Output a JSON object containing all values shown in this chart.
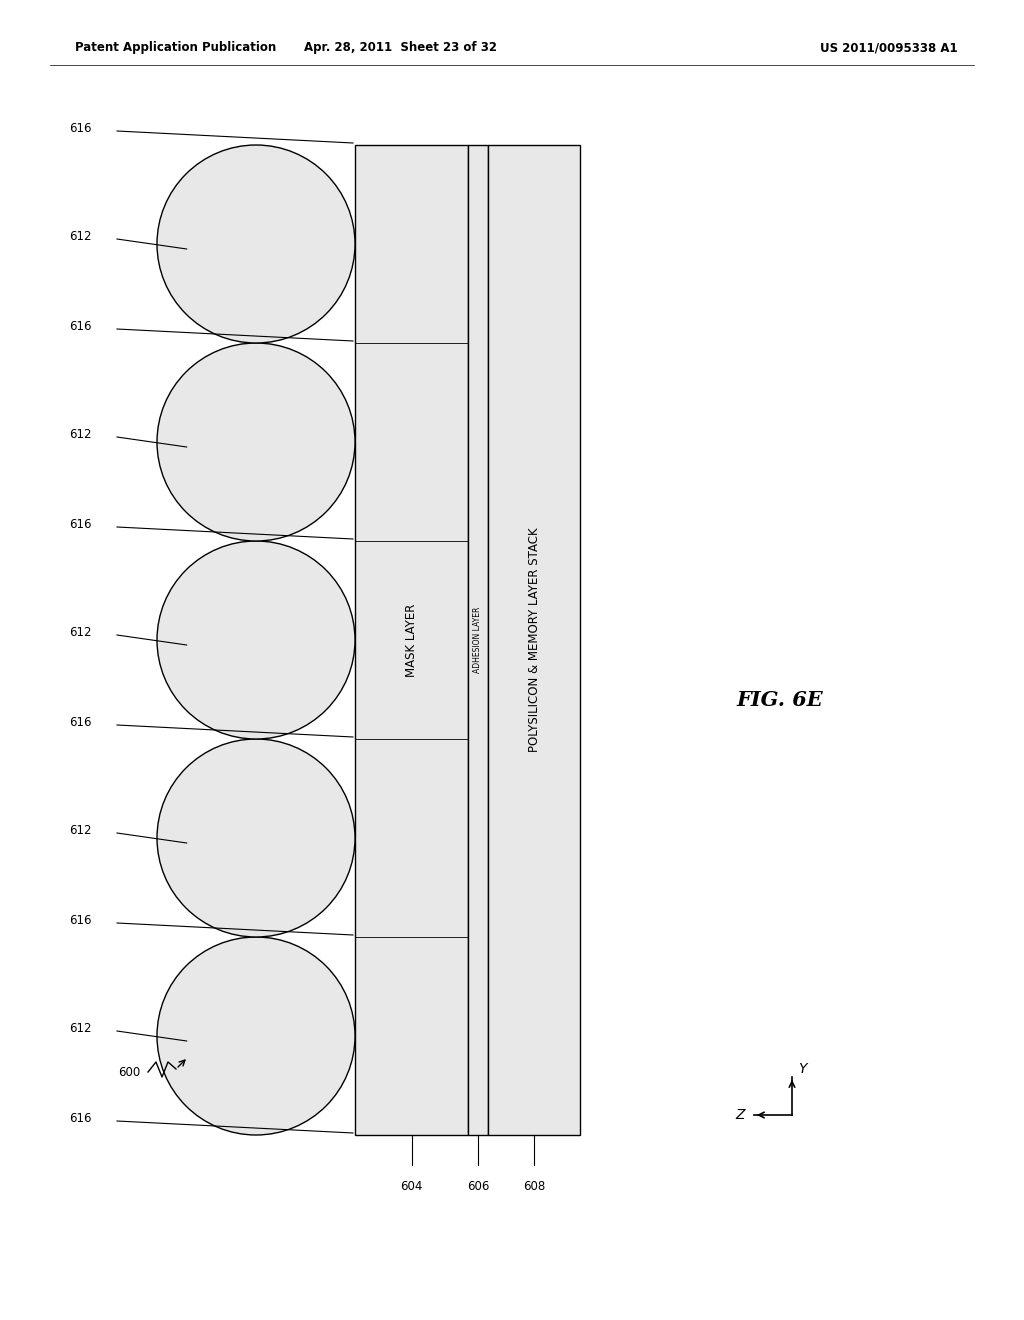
{
  "header_left": "Patent Application Publication",
  "header_center": "Apr. 28, 2011  Sheet 23 of 32",
  "header_right": "US 2011/0095338 A1",
  "fig_label": "FIG. 6E",
  "label_600": "600",
  "label_604": "604",
  "label_606": "606",
  "label_608": "608",
  "label_612": "612",
  "label_616": "616",
  "mask_layer_text": "MASK LAYER",
  "adhesion_layer_text": "ADHESION LAYER",
  "poly_text": "POLYSILICON & MEMORY LAYER STACK",
  "bg_color": "#ffffff",
  "line_color": "#000000",
  "layer_fill": "#e8e8e8",
  "circle_fill": "#e8e8e8"
}
